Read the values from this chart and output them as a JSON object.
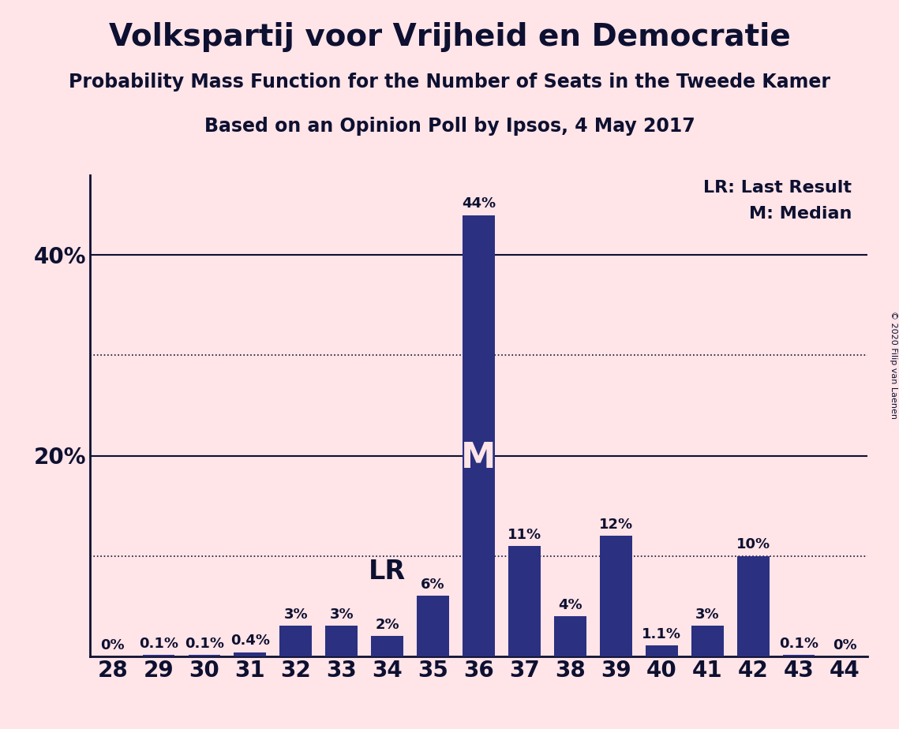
{
  "title": "Volkspartij voor Vrijheid en Democratie",
  "subtitle1": "Probability Mass Function for the Number of Seats in the Tweede Kamer",
  "subtitle2": "Based on an Opinion Poll by Ipsos, 4 May 2017",
  "copyright": "© 2020 Filip van Laenen",
  "background_color": "#FFE4E8",
  "bar_color": "#2B3080",
  "text_color": "#0D1030",
  "seats": [
    28,
    29,
    30,
    31,
    32,
    33,
    34,
    35,
    36,
    37,
    38,
    39,
    40,
    41,
    42,
    43,
    44
  ],
  "probabilities": [
    0.0,
    0.1,
    0.1,
    0.4,
    3.0,
    3.0,
    2.0,
    6.0,
    44.0,
    11.0,
    4.0,
    12.0,
    1.1,
    3.0,
    10.0,
    0.1,
    0.0
  ],
  "labels": [
    "0%",
    "0.1%",
    "0.1%",
    "0.4%",
    "3%",
    "3%",
    "2%",
    "6%",
    "44%",
    "11%",
    "4%",
    "12%",
    "1.1%",
    "3%",
    "10%",
    "0.1%",
    "0%"
  ],
  "lr_seat": 34,
  "median_seat": 36,
  "ylim": [
    0,
    48
  ],
  "solid_gridlines": [
    20,
    40
  ],
  "dotted_gridlines": [
    10,
    30
  ],
  "legend_text": "LR: Last Result\nM: Median",
  "title_fontsize": 28,
  "subtitle_fontsize": 17,
  "label_fontsize": 13,
  "axis_fontsize": 20,
  "annotation_fontsize": 24,
  "legend_fontsize": 16,
  "m_fontsize": 32,
  "copyright_fontsize": 8
}
